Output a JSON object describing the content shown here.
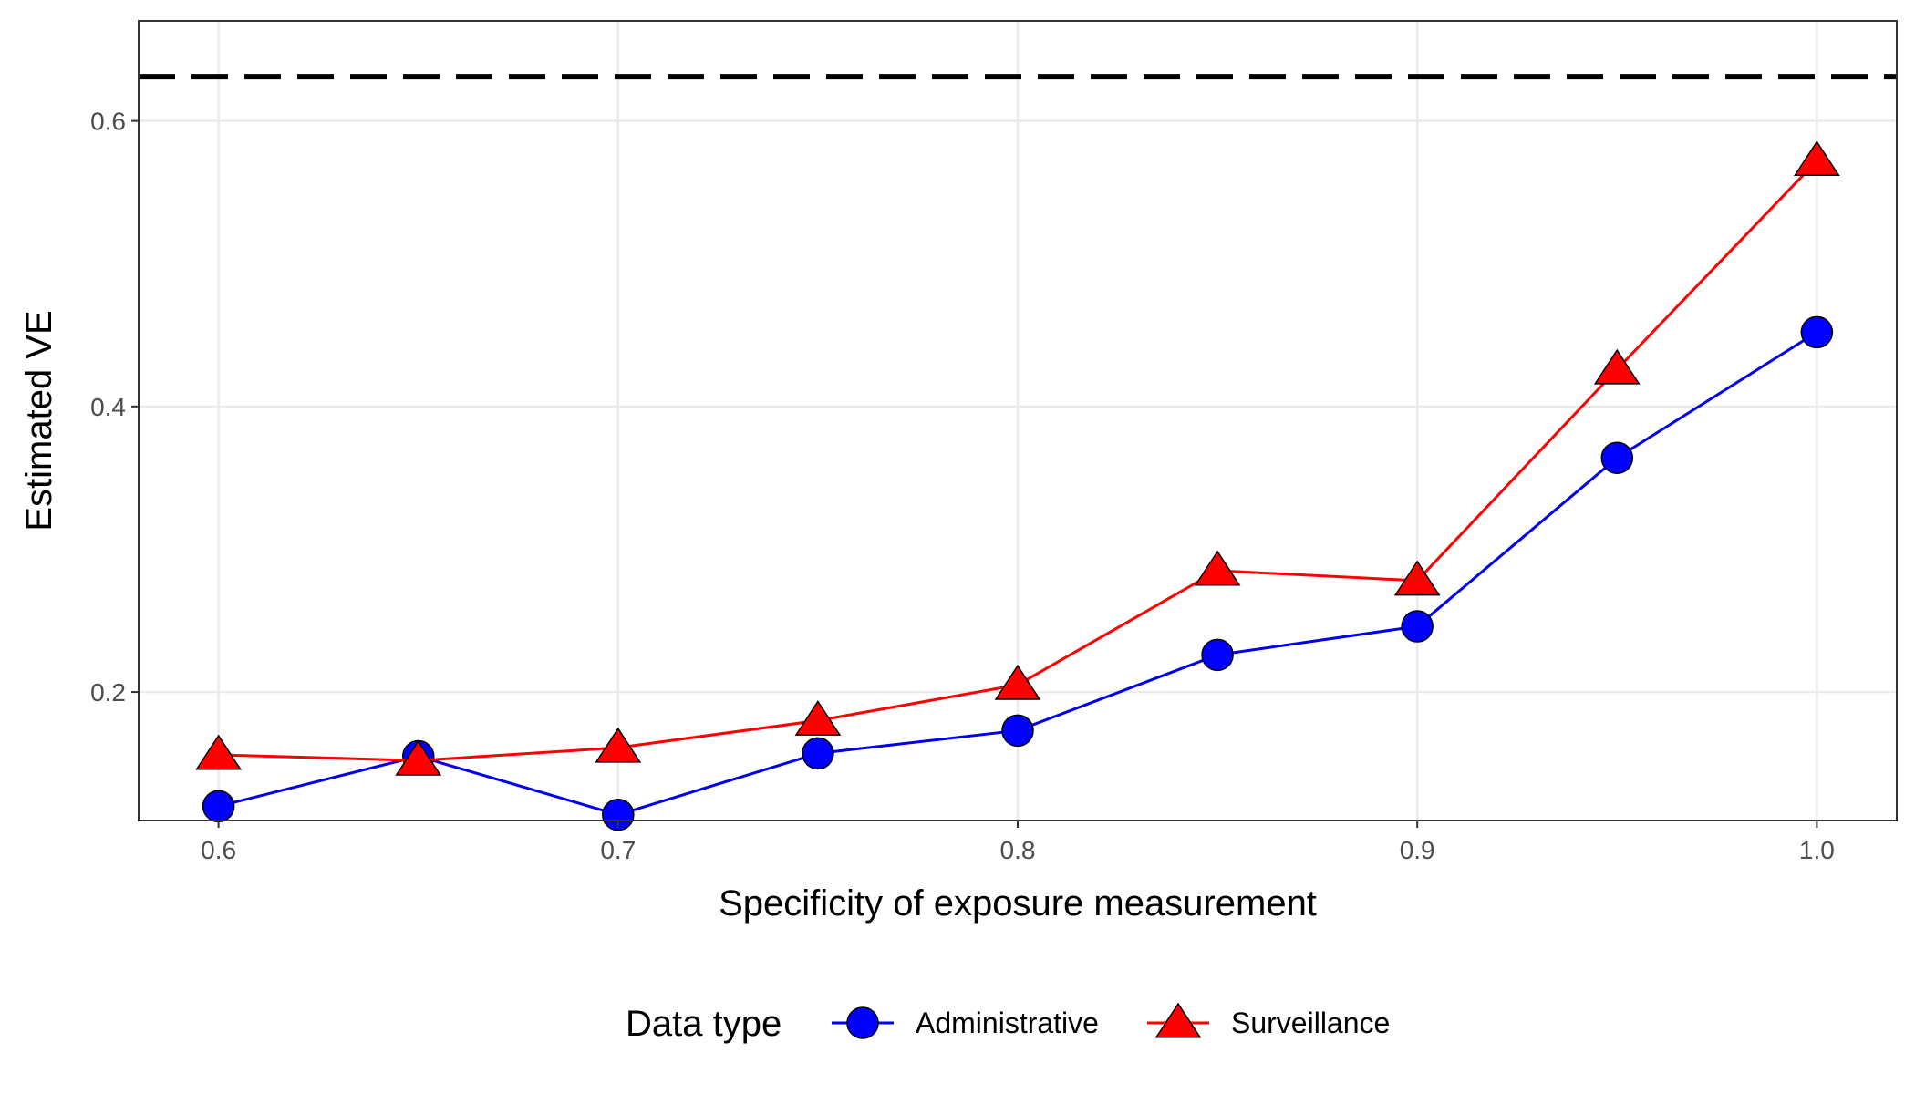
{
  "chart_data": {
    "type": "line",
    "title": "",
    "xlabel": "Specificity of exposure measurement",
    "ylabel": "Estimated VE",
    "xlim": [
      0.58,
      1.02
    ],
    "ylim": [
      0.11,
      0.67
    ],
    "xticks": [
      0.6,
      0.7,
      0.8,
      0.9,
      1.0
    ],
    "xtick_labels": [
      "0.6",
      "0.7",
      "0.8",
      "0.9",
      "1.0"
    ],
    "yticks": [
      0.2,
      0.4,
      0.6
    ],
    "ytick_labels": [
      "0.2",
      "0.4",
      "0.6"
    ],
    "grid": true,
    "legend": {
      "title": "Data type",
      "position": "bottom"
    },
    "reference_line": {
      "y": 0.631,
      "style": "dashed",
      "color": "#000000"
    },
    "x": [
      0.6,
      0.65,
      0.7,
      0.75,
      0.8,
      0.85,
      0.9,
      0.95,
      1.0
    ],
    "series": [
      {
        "name": "Administrative",
        "marker": "circle",
        "line_color": "#0000ee",
        "fill_color": "#0000ff",
        "values": [
          0.12,
          0.155,
          0.114,
          0.157,
          0.173,
          0.226,
          0.246,
          0.364,
          0.452
        ]
      },
      {
        "name": "Surveillance",
        "marker": "triangle",
        "line_color": "#ff0000",
        "fill_color": "#ff0000",
        "values": [
          0.156,
          0.152,
          0.161,
          0.18,
          0.205,
          0.285,
          0.278,
          0.426,
          0.572
        ]
      }
    ]
  }
}
